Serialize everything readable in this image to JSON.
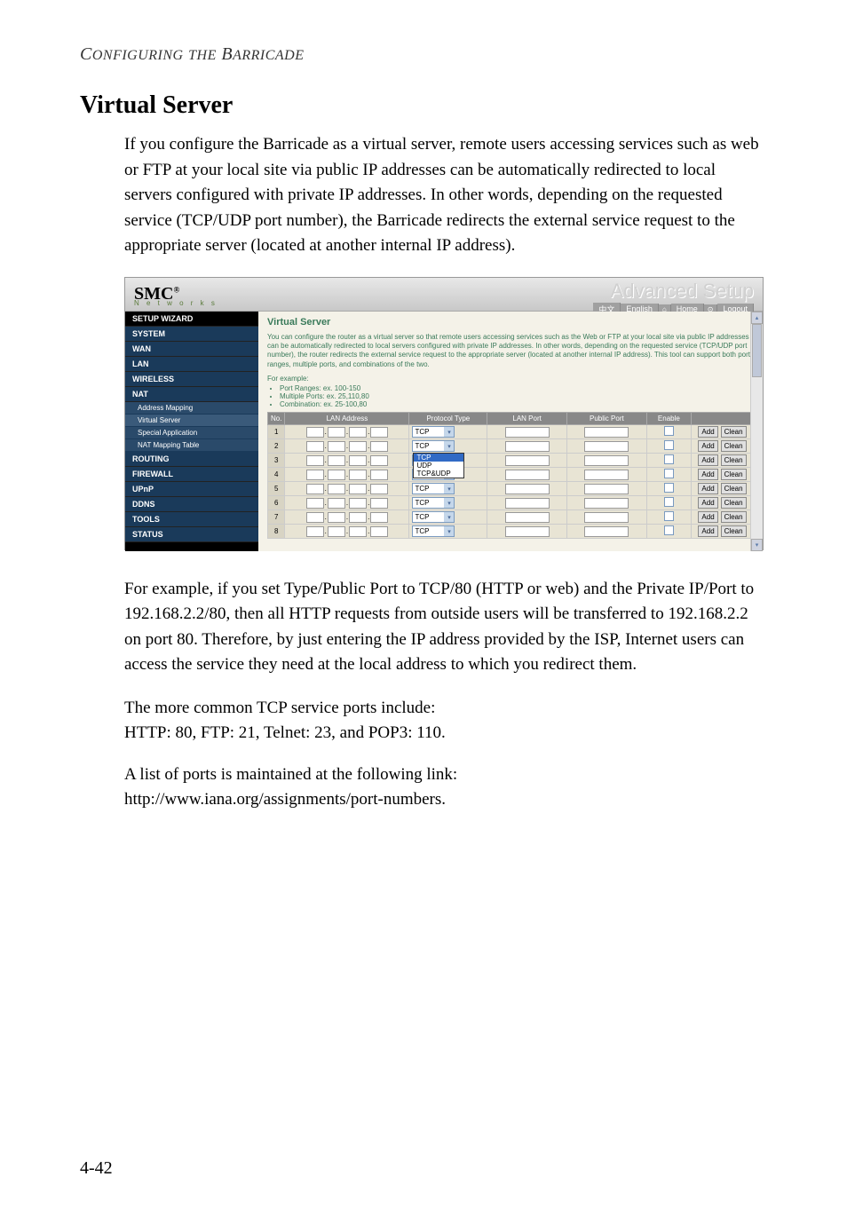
{
  "header": "CONFIGURING THE BARRICADE",
  "title": "Virtual Server",
  "paragraphs": {
    "p1": "If you configure the Barricade as a virtual server, remote users accessing services such as web or FTP at your local site via public IP addresses can be automatically redirected to local servers configured with private IP addresses. In other words, depending on the requested service (TCP/UDP port number), the Barricade redirects the external service request to the appropriate server (located at another internal IP address).",
    "p2": "For example, if you set Type/Public Port to TCP/80 (HTTP or web) and the Private IP/Port to 192.168.2.2/80, then all HTTP requests from outside users will be transferred to 192.168.2.2 on port 80. Therefore, by just entering the IP address provided by the ISP, Internet users can access the service they need at the local address to which you redirect them.",
    "p3": "The more common TCP service ports include:",
    "p4": "HTTP: 80, FTP: 21, Telnet: 23, and POP3: 110.",
    "p5": "A list of ports is maintained at the following link:",
    "p6": "http://www.iana.org/assignments/port-numbers."
  },
  "screenshot": {
    "logo": "SMC",
    "logo_reg": "®",
    "logo_sub": "N e t w o r k s",
    "brand": "Advanced Setup",
    "toolbar": {
      "lang1": "中文",
      "lang2": "English",
      "home_icon": "⌂",
      "home": "Home",
      "logout_icon": "⊙",
      "logout": "Logout"
    },
    "sidebar": {
      "setup_wizard": "SETUP WIZARD",
      "system": "SYSTEM",
      "wan": "WAN",
      "lan": "LAN",
      "wireless": "WIRELESS",
      "nat": "NAT",
      "addr_mapping": "Address Mapping",
      "virtual_server": "Virtual Server",
      "special_app": "Special Application",
      "nat_mapping": "NAT Mapping Table",
      "routing": "ROUTING",
      "firewall": "FIREWALL",
      "upnp": "UPnP",
      "ddns": "DDNS",
      "tools": "TOOLS",
      "status": "STATUS"
    },
    "content": {
      "title": "Virtual Server",
      "desc": "You can configure the router as a virtual server so that remote users accessing services such as the Web or FTP at your local site via public IP addresses can be automatically redirected to local servers configured with private IP addresses. In other words, depending on the requested service (TCP/UDP port number), the router redirects the external service request to the appropriate server (located at another internal IP address). This tool can support both port ranges, multiple ports, and combinations of the two.",
      "example_label": "For example:",
      "examples": {
        "e1": "Port Ranges: ex. 100-150",
        "e2": "Multiple Ports: ex. 25,110,80",
        "e3": "Combination: ex. 25-100,80"
      },
      "cols": {
        "no": "No.",
        "lan_addr": "LAN Address",
        "proto": "Protocol Type",
        "lan_port": "LAN Port",
        "pub_port": "Public Port",
        "enable": "Enable"
      },
      "proto_default": "TCP",
      "dropdown": {
        "sel": "TCP",
        "o2": "UDP",
        "o3": "TCP&UDP"
      },
      "btn_add": "Add",
      "btn_clean": "Clean",
      "rows": [
        "1",
        "2",
        "3",
        "4",
        "5",
        "6",
        "7",
        "8"
      ]
    }
  },
  "page_num": "4-42"
}
